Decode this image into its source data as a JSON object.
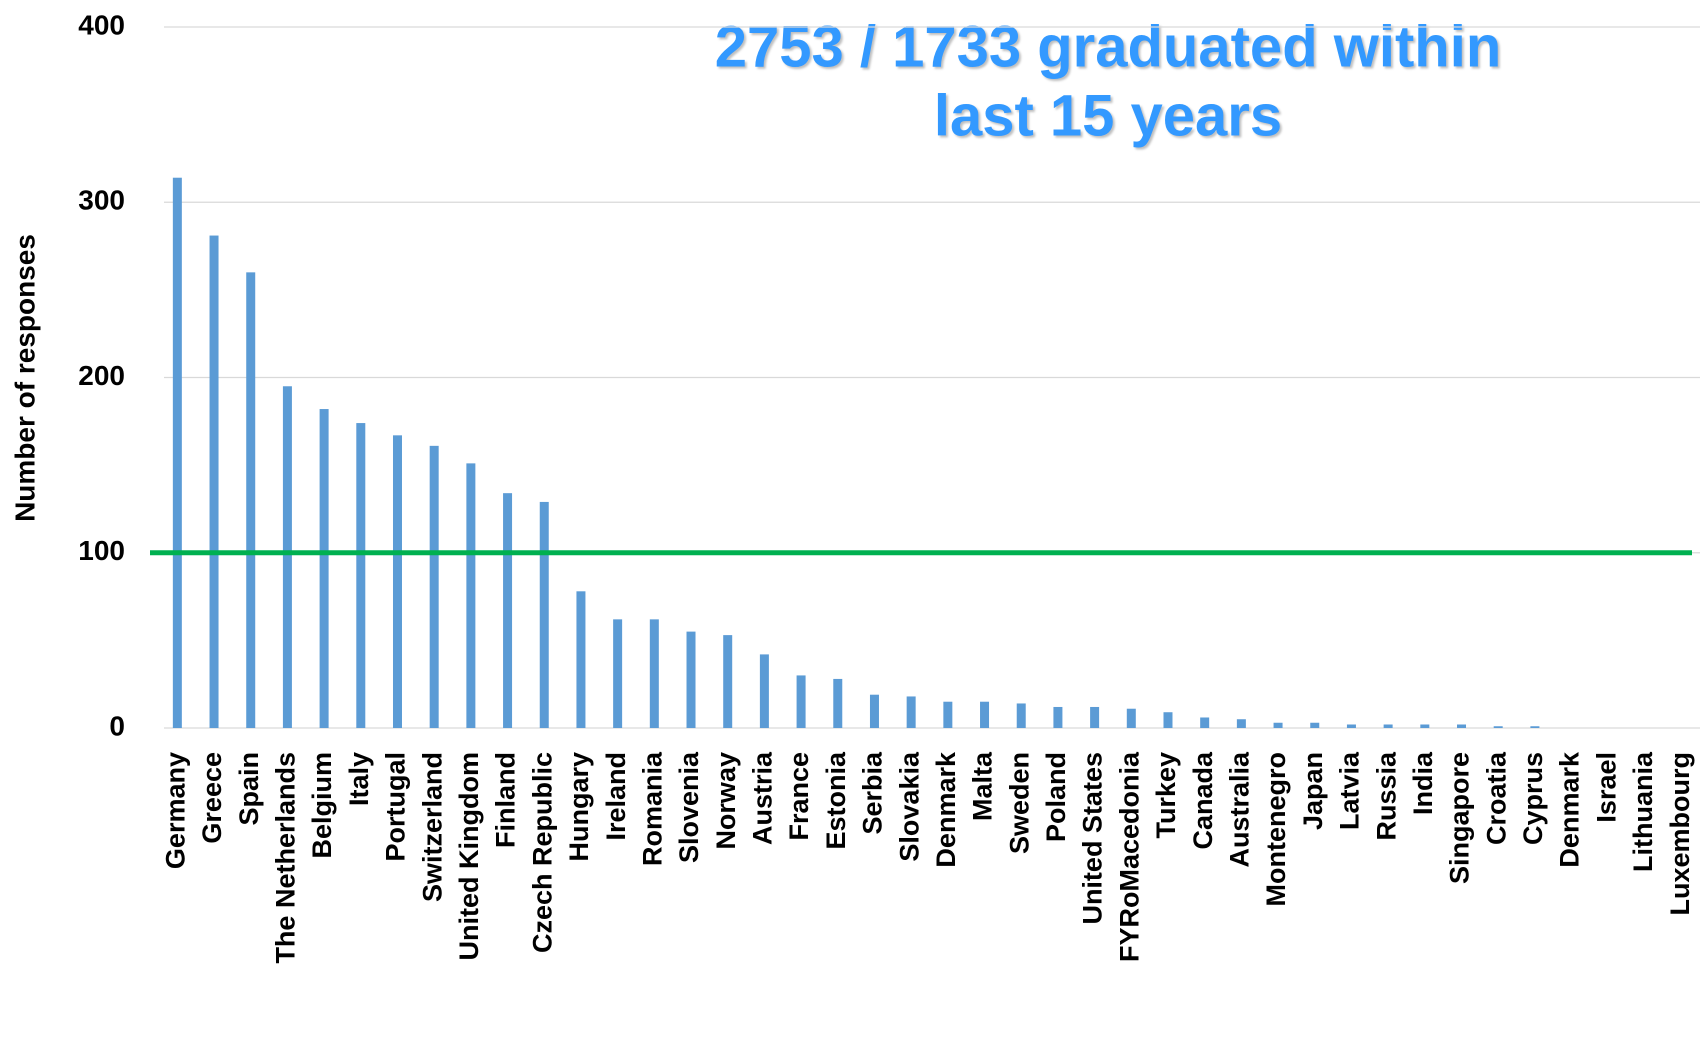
{
  "chart_data": {
    "type": "bar",
    "title_lines": [
      "2753 / 1733 graduated within",
      "last 15 years"
    ],
    "y_label": "Number of responses",
    "categories": [
      "Germany",
      "Greece",
      "Spain",
      "The Netherlands",
      "Belgium",
      "Italy",
      "Portugal",
      "Switzerland",
      "United Kingdom",
      "Finland",
      "Czech Republic",
      "Hungary",
      "Ireland",
      "Romania",
      "Slovenia",
      "Norway",
      "Austria",
      "France",
      "Estonia",
      "Serbia",
      "Slovakia",
      "Denmark",
      "Malta",
      "Sweden",
      "Poland",
      "United States",
      "FYRoMacedonia",
      "Turkey",
      "Canada",
      "Australia",
      "Montenegro",
      "Japan",
      "Latvia",
      "Russia",
      "India",
      "Singapore",
      "Croatia",
      "Cyprus",
      "Denmark",
      "Israel",
      "Lithuania",
      "Luxembourg"
    ],
    "values": [
      314,
      281,
      260,
      195,
      182,
      174,
      167,
      161,
      151,
      134,
      129,
      78,
      62,
      62,
      55,
      53,
      42,
      30,
      28,
      19,
      18,
      15,
      15,
      14,
      12,
      12,
      11,
      9,
      6,
      5,
      3,
      3,
      2,
      2,
      2,
      2,
      1,
      1,
      0,
      0,
      0,
      0
    ],
    "color": "#5b9bd5",
    "reference_line": {
      "value": 100,
      "color": "#00b050"
    },
    "ylim": [
      0,
      400
    ],
    "yticks": [
      0,
      100,
      200,
      300,
      400
    ],
    "grid": true
  }
}
